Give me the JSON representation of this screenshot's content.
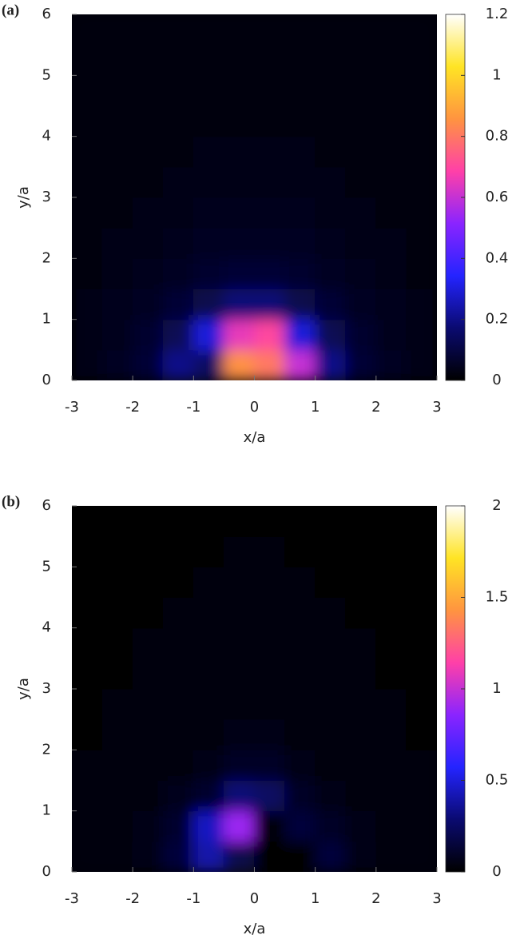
{
  "chart_data": [
    {
      "type": "heatmap",
      "label": "(a)",
      "x_label": "x/a",
      "y_label": "y/a",
      "xlim": [
        -3,
        3
      ],
      "ylim": [
        0,
        6
      ],
      "xticks": [
        -3,
        -2,
        -1,
        0,
        1,
        2,
        3
      ],
      "yticks": [
        0,
        1,
        2,
        3,
        4,
        5,
        6
      ],
      "x": [
        -2.75,
        -2.25,
        -1.75,
        -1.25,
        -0.75,
        -0.25,
        0.25,
        0.75,
        1.25,
        1.75,
        2.25,
        2.75
      ],
      "y": [
        0.25,
        0.75,
        1.25,
        1.75,
        2.25,
        2.75,
        3.25,
        3.75,
        4.25,
        4.75,
        5.25,
        5.75
      ],
      "z": [
        [
          0.03,
          0.05,
          0.08,
          0.2,
          0.15,
          0.85,
          0.8,
          0.6,
          0.2,
          0.08,
          0.05,
          0.03
        ],
        [
          0.03,
          0.04,
          0.07,
          0.13,
          0.3,
          0.65,
          0.7,
          0.3,
          0.13,
          0.07,
          0.04,
          0.03
        ],
        [
          0.03,
          0.04,
          0.05,
          0.08,
          0.12,
          0.18,
          0.18,
          0.12,
          0.08,
          0.05,
          0.04,
          0.03
        ],
        [
          0.02,
          0.03,
          0.04,
          0.05,
          0.07,
          0.08,
          0.08,
          0.07,
          0.05,
          0.04,
          0.03,
          0.02
        ],
        [
          0.02,
          0.03,
          0.03,
          0.04,
          0.05,
          0.05,
          0.05,
          0.05,
          0.04,
          0.03,
          0.03,
          0.02
        ],
        [
          0.02,
          0.02,
          0.03,
          0.03,
          0.04,
          0.04,
          0.04,
          0.04,
          0.03,
          0.03,
          0.02,
          0.02
        ],
        [
          0.02,
          0.02,
          0.02,
          0.03,
          0.03,
          0.03,
          0.03,
          0.03,
          0.03,
          0.02,
          0.02,
          0.02
        ],
        [
          0.02,
          0.02,
          0.02,
          0.02,
          0.03,
          0.03,
          0.03,
          0.03,
          0.02,
          0.02,
          0.02,
          0.02
        ],
        [
          0.02,
          0.02,
          0.02,
          0.02,
          0.02,
          0.02,
          0.02,
          0.02,
          0.02,
          0.02,
          0.02,
          0.02
        ],
        [
          0.01,
          0.02,
          0.02,
          0.02,
          0.02,
          0.02,
          0.02,
          0.02,
          0.02,
          0.02,
          0.02,
          0.01
        ],
        [
          0.01,
          0.01,
          0.02,
          0.02,
          0.02,
          0.02,
          0.02,
          0.02,
          0.02,
          0.02,
          0.01,
          0.01
        ],
        [
          0.01,
          0.01,
          0.01,
          0.02,
          0.02,
          0.02,
          0.02,
          0.02,
          0.02,
          0.01,
          0.01,
          0.01
        ]
      ],
      "zlim": [
        0,
        1.2
      ],
      "zticks": [
        0,
        0.2,
        0.4,
        0.6,
        0.8,
        1,
        1.2
      ],
      "colormap": [
        "#000000",
        "#0a0a70",
        "#2424ff",
        "#8a24ff",
        "#ff40a8",
        "#ff9440",
        "#ffe424",
        "#ffffff"
      ]
    },
    {
      "type": "heatmap",
      "label": "(b)",
      "x_label": "x/a",
      "y_label": "y/a",
      "xlim": [
        -3,
        3
      ],
      "ylim": [
        0,
        6
      ],
      "xticks": [
        -3,
        -2,
        -1,
        0,
        1,
        2,
        3
      ],
      "yticks": [
        0,
        1,
        2,
        3,
        4,
        5,
        6
      ],
      "x": [
        -2.75,
        -2.25,
        -1.75,
        -1.25,
        -0.75,
        -0.25,
        0.25,
        0.75,
        1.25,
        1.75,
        2.25,
        2.75
      ],
      "y": [
        0.25,
        0.75,
        1.25,
        1.75,
        2.25,
        2.75,
        3.25,
        3.75,
        4.25,
        4.75,
        5.25,
        5.75
      ],
      "z": [
        [
          0.02,
          0.03,
          0.06,
          0.15,
          0.4,
          0.2,
          0,
          0,
          0.15,
          0.06,
          0.03,
          0.02
        ],
        [
          0.02,
          0.03,
          0.05,
          0.12,
          0.45,
          0.9,
          0,
          0.15,
          0.1,
          0.05,
          0.03,
          0.02
        ],
        [
          0.02,
          0.03,
          0.04,
          0.07,
          0.12,
          0.3,
          0.25,
          0.1,
          0.06,
          0.04,
          0.03,
          0.02
        ],
        [
          0.02,
          0.02,
          0.03,
          0.04,
          0.06,
          0.1,
          0.1,
          0.06,
          0.04,
          0.03,
          0.02,
          0.02
        ],
        [
          0.01,
          0.02,
          0.02,
          0.03,
          0.04,
          0.06,
          0.06,
          0.04,
          0.03,
          0.02,
          0.02,
          0.01
        ],
        [
          0.01,
          0.02,
          0.02,
          0.03,
          0.03,
          0.04,
          0.04,
          0.03,
          0.03,
          0.02,
          0.02,
          0.01
        ],
        [
          0.01,
          0.01,
          0.02,
          0.02,
          0.03,
          0.03,
          0.03,
          0.03,
          0.02,
          0.02,
          0.01,
          0.01
        ],
        [
          0.01,
          0.01,
          0.02,
          0.02,
          0.02,
          0.03,
          0.03,
          0.02,
          0.02,
          0.02,
          0.01,
          0.01
        ],
        [
          0.01,
          0.01,
          0.01,
          0.02,
          0.02,
          0.02,
          0.02,
          0.02,
          0.02,
          0.01,
          0.01,
          0.01
        ],
        [
          0.01,
          0.01,
          0.01,
          0.01,
          0.02,
          0.02,
          0.02,
          0.02,
          0.01,
          0.01,
          0.01,
          0.01
        ],
        [
          0.01,
          0.01,
          0.01,
          0.01,
          0.01,
          0.02,
          0.02,
          0.01,
          0.01,
          0.01,
          0.01,
          0.01
        ],
        [
          0.01,
          0.01,
          0.01,
          0.01,
          0.01,
          0.01,
          0.01,
          0.01,
          0.01,
          0.01,
          0.01,
          0.01
        ]
      ],
      "zlim": [
        0,
        2
      ],
      "zticks": [
        0,
        0.5,
        1,
        1.5,
        2
      ],
      "colormap": [
        "#000000",
        "#0a0a70",
        "#2424ff",
        "#8a24ff",
        "#ff40a8",
        "#ff9440",
        "#ffe424",
        "#ffffff"
      ]
    }
  ]
}
